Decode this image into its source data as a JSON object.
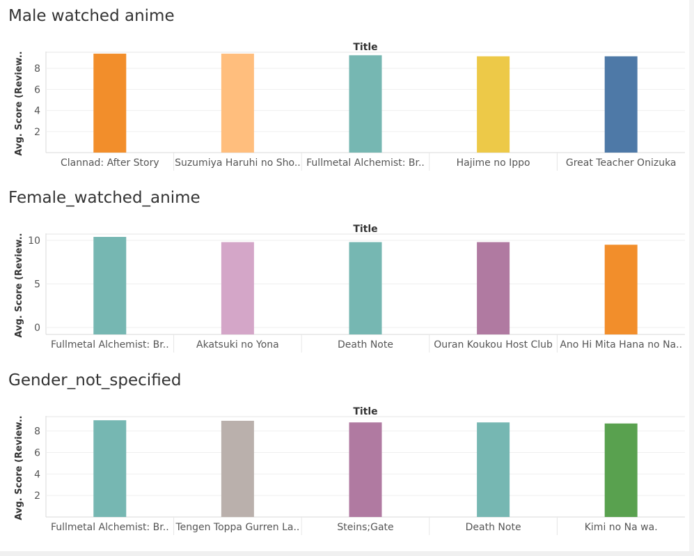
{
  "chart_data": [
    {
      "type": "bar",
      "title": "Male watched anime",
      "xlabel": "Title",
      "ylabel": "Avg. Score (Review..",
      "ylim": [
        0,
        9.6
      ],
      "yticks": [
        2,
        4,
        6,
        8
      ],
      "grid": true,
      "categories": [
        "Clannad: After Story",
        "Suzumiya Haruhi no Sho..",
        "Fullmetal Alchemist: Br..",
        "Hajime no Ippo",
        "Great Teacher Onizuka"
      ],
      "values": [
        9.4,
        9.4,
        9.25,
        9.15,
        9.15
      ],
      "colors": [
        "#f28e2b",
        "#ffbe7d",
        "#76b7b2",
        "#edc948",
        "#4e79a7"
      ]
    },
    {
      "type": "bar",
      "title": "Female_watched_anime",
      "xlabel": "Title",
      "ylabel": "Avg. Score (Review..",
      "ylim": [
        -0.8,
        10.8
      ],
      "yticks": [
        0,
        5,
        10
      ],
      "grid": true,
      "categories": [
        "Fullmetal Alchemist: Br..",
        "Akatsuki no Yona",
        "Death Note",
        "Ouran Koukou Host Club",
        "Ano Hi Mita Hana no Na.."
      ],
      "values": [
        10.4,
        9.8,
        9.8,
        9.8,
        9.5
      ],
      "colors": [
        "#76b7b2",
        "#d4a6c8",
        "#76b7b2",
        "#b07aa1",
        "#f28e2b"
      ]
    },
    {
      "type": "bar",
      "title": "Gender_not_specified",
      "xlabel": "Title",
      "ylabel": "Avg. Score (Review..",
      "ylim": [
        0,
        9.4
      ],
      "yticks": [
        2,
        4,
        6,
        8
      ],
      "grid": true,
      "categories": [
        "Fullmetal Alchemist: Br..",
        "Tengen Toppa Gurren La..",
        "Steins;Gate",
        "Death Note",
        "Kimi no Na wa."
      ],
      "values": [
        9.0,
        8.95,
        8.8,
        8.8,
        8.7
      ],
      "colors": [
        "#76b7b2",
        "#bab0ac",
        "#b07aa1",
        "#76b7b2",
        "#59a14f"
      ]
    }
  ]
}
